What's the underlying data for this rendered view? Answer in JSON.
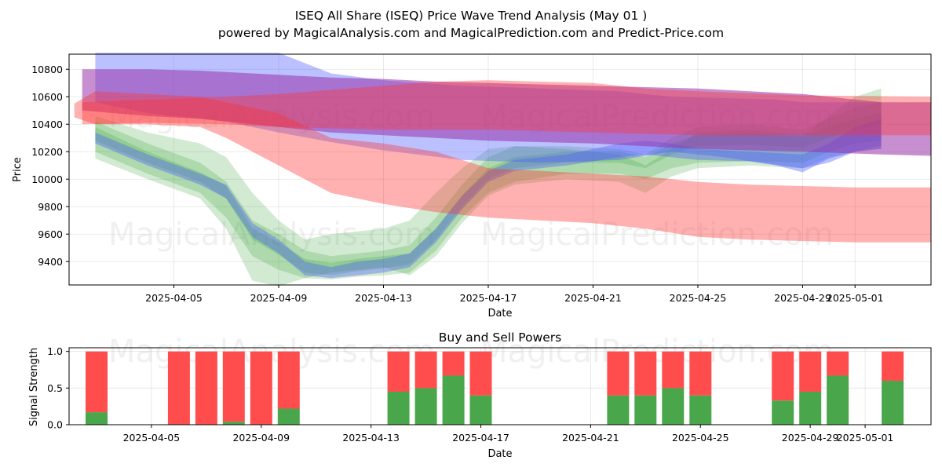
{
  "title_line1": "ISEQ All Share (ISEQ) Price Wave Trend Analysis (May 01 )",
  "title_line2": "powered by MagicalAnalysis.com and MagicalPrediction.com and Predict-Price.com",
  "watermarks": [
    "MagicalAnalysis.com",
    "MagicalPrediction.com"
  ],
  "colors": {
    "green": "#2ca02c",
    "red": "#ff3333",
    "blue": "#4d5cff",
    "purple": "#9933aa",
    "buy": "#4aa64a",
    "sell": "#ff4d4d"
  },
  "chart_data": [
    {
      "type": "area",
      "title": "ISEQ All Share (ISEQ) Price Wave Trend Analysis (May 01 )",
      "xlabel": "Date",
      "ylabel": "Price",
      "xlim": [
        "2025-04-01",
        "2025-05-03.9"
      ],
      "ylim": [
        9230,
        10910
      ],
      "yticks": [
        9400,
        9600,
        9800,
        10000,
        10200,
        10400,
        10600,
        10800
      ],
      "xticks": [
        "2025-04-05",
        "2025-04-09",
        "2025-04-13",
        "2025-04-17",
        "2025-04-21",
        "2025-04-25",
        "2025-04-29",
        "2025-05-01"
      ],
      "grid": true,
      "series": [
        {
          "name": "green band 1",
          "color": "green",
          "x": [
            "2025-04-02",
            "2025-04-04",
            "2025-04-06",
            "2025-04-07",
            "2025-04-08",
            "2025-04-09",
            "2025-04-10",
            "2025-04-11",
            "2025-04-12",
            "2025-04-13",
            "2025-04-14",
            "2025-04-15",
            "2025-04-16",
            "2025-04-17",
            "2025-04-18",
            "2025-04-20",
            "2025-04-22",
            "2025-04-23",
            "2025-04-24",
            "2025-04-25",
            "2025-04-27",
            "2025-04-29",
            "2025-04-30",
            "2025-05-01",
            "2025-05-02"
          ],
          "upper": [
            10380,
            10200,
            10050,
            9950,
            9640,
            9540,
            9420,
            9390,
            9420,
            9440,
            9460,
            9640,
            9880,
            10080,
            10160,
            10200,
            10200,
            10160,
            10260,
            10320,
            10330,
            10310,
            10380,
            10440,
            10480
          ],
          "lower": [
            10280,
            10120,
            9980,
            9860,
            9560,
            9450,
            9320,
            9300,
            9330,
            9350,
            9380,
            9560,
            9800,
            10000,
            10080,
            10120,
            10120,
            10080,
            10180,
            10240,
            10250,
            10230,
            10300,
            10360,
            10400
          ]
        },
        {
          "name": "green band 2",
          "color": "green",
          "x": [
            "2025-04-02",
            "2025-04-04",
            "2025-04-06",
            "2025-04-07",
            "2025-04-08",
            "2025-04-09",
            "2025-04-10",
            "2025-04-11",
            "2025-04-12",
            "2025-04-13",
            "2025-04-14",
            "2025-04-15",
            "2025-04-16",
            "2025-04-17",
            "2025-04-18",
            "2025-04-20",
            "2025-04-22",
            "2025-04-23",
            "2025-04-24",
            "2025-04-25",
            "2025-04-27",
            "2025-04-29",
            "2025-04-30",
            "2025-05-01",
            "2025-05-02"
          ],
          "upper": [
            10420,
            10260,
            10120,
            9980,
            9700,
            9600,
            9480,
            9440,
            9460,
            9480,
            9520,
            9720,
            9960,
            10160,
            10240,
            10240,
            10220,
            10180,
            10300,
            10380,
            10400,
            10360,
            10440,
            10520,
            10560
          ],
          "lower": [
            10200,
            10040,
            9900,
            9720,
            9440,
            9340,
            9280,
            9270,
            9290,
            9300,
            9320,
            9480,
            9720,
            9900,
            9980,
            10040,
            10040,
            10000,
            10080,
            10120,
            10130,
            10120,
            10200,
            10260,
            10280
          ]
        },
        {
          "name": "green band 3",
          "color": "green",
          "x": [
            "2025-04-02",
            "2025-04-04",
            "2025-04-06",
            "2025-04-07",
            "2025-04-08",
            "2025-04-09",
            "2025-04-10",
            "2025-04-11",
            "2025-04-12",
            "2025-04-13",
            "2025-04-14",
            "2025-04-15",
            "2025-04-16",
            "2025-04-17",
            "2025-04-18",
            "2025-04-20",
            "2025-04-22",
            "2025-04-23",
            "2025-04-24",
            "2025-04-25",
            "2025-04-27",
            "2025-04-29",
            "2025-04-30",
            "2025-05-01",
            "2025-05-02"
          ],
          "upper": [
            10460,
            10340,
            10260,
            10160,
            9900,
            9700,
            9560,
            9600,
            9620,
            9640,
            9700,
            9900,
            10080,
            10220,
            10240,
            10220,
            10180,
            10100,
            10220,
            10340,
            10360,
            10320,
            10460,
            10600,
            10660
          ],
          "lower": [
            10150,
            10000,
            9860,
            9640,
            9260,
            9220,
            9280,
            9320,
            9340,
            9360,
            9300,
            9440,
            9680,
            9880,
            9960,
            10000,
            9980,
            9900,
            10020,
            10080,
            10100,
            10080,
            10160,
            10200,
            10220
          ]
        },
        {
          "name": "blue band 1",
          "color": "blue",
          "x": [
            "2025-04-02",
            "2025-04-04",
            "2025-04-06",
            "2025-04-07",
            "2025-04-08",
            "2025-04-09",
            "2025-04-10",
            "2025-04-11",
            "2025-04-12",
            "2025-04-13",
            "2025-04-14",
            "2025-04-15",
            "2025-04-16",
            "2025-04-17",
            "2025-04-18",
            "2025-04-20",
            "2025-04-22",
            "2025-04-23",
            "2025-04-24",
            "2025-04-25",
            "2025-04-27",
            "2025-04-29",
            "2025-04-30",
            "2025-05-01",
            "2025-05-02"
          ],
          "upper": [
            10340,
            10180,
            10040,
            9960,
            9680,
            9560,
            9400,
            9360,
            9400,
            9420,
            9460,
            9640,
            9880,
            10060,
            10140,
            10180,
            10260,
            10280,
            10260,
            10220,
            10200,
            10180,
            10260,
            10380,
            10440
          ],
          "lower": [
            10260,
            10100,
            9960,
            9860,
            9580,
            9460,
            9300,
            9280,
            9300,
            9320,
            9360,
            9540,
            9780,
            9980,
            10060,
            10100,
            10160,
            10180,
            10160,
            10140,
            10130,
            10080,
            10120,
            10200,
            10240
          ]
        },
        {
          "name": "blue band 2",
          "color": "blue",
          "x": [
            "2025-04-02",
            "2025-04-04",
            "2025-04-07",
            "2025-04-09",
            "2025-04-11",
            "2025-04-13",
            "2025-04-16",
            "2025-04-19",
            "2025-04-22",
            "2025-04-24",
            "2025-04-26",
            "2025-04-28",
            "2025-04-29",
            "2025-04-30",
            "2025-05-01",
            "2025-05-02"
          ],
          "upper": [
            10920,
            10920,
            10920,
            10920,
            10770,
            10720,
            10680,
            10660,
            10640,
            10600,
            10590,
            10580,
            10560,
            10560,
            10560,
            10560
          ],
          "lower": [
            10560,
            10480,
            10420,
            10340,
            10270,
            10210,
            10140,
            10120,
            10140,
            10200,
            10160,
            10100,
            10050,
            10150,
            10200,
            10220
          ]
        },
        {
          "name": "purple band",
          "color": "purple",
          "x": [
            "2025-04-01.5",
            "2025-04-04",
            "2025-04-06",
            "2025-04-07",
            "2025-04-09",
            "2025-04-11",
            "2025-04-13",
            "2025-04-15",
            "2025-04-17",
            "2025-04-21",
            "2025-04-23",
            "2025-04-25",
            "2025-04-29",
            "2025-05-02",
            "2025-05-03.9"
          ],
          "upper": [
            10800,
            10800,
            10790,
            10780,
            10760,
            10740,
            10730,
            10710,
            10700,
            10680,
            10670,
            10660,
            10620,
            10560,
            10560
          ],
          "lower": [
            10500,
            10460,
            10440,
            10420,
            10380,
            10340,
            10320,
            10300,
            10280,
            10260,
            10240,
            10220,
            10200,
            10180,
            10170
          ]
        },
        {
          "name": "red band 1",
          "color": "red",
          "x": [
            "2025-04-01.2",
            "2025-04-02",
            "2025-04-04",
            "2025-04-06",
            "2025-04-07",
            "2025-04-09",
            "2025-04-11",
            "2025-04-13",
            "2025-04-15",
            "2025-04-17",
            "2025-04-19",
            "2025-04-21",
            "2025-04-23",
            "2025-04-25",
            "2025-04-27",
            "2025-04-29",
            "2025-05-01",
            "2025-05-03.9"
          ],
          "upper": [
            10550,
            10640,
            10620,
            10600,
            10560,
            10480,
            10300,
            10260,
            10200,
            10080,
            10060,
            10040,
            10020,
            9980,
            9960,
            9950,
            9940,
            9940
          ],
          "lower": [
            10450,
            10400,
            10400,
            10380,
            10300,
            10100,
            9900,
            9820,
            9760,
            9720,
            9700,
            9680,
            9640,
            9580,
            9560,
            9550,
            9540,
            9540
          ]
        },
        {
          "name": "red band 2",
          "color": "red",
          "x": [
            "2025-04-01.5",
            "2025-04-04",
            "2025-04-07",
            "2025-04-09",
            "2025-04-11",
            "2025-04-13",
            "2025-04-15",
            "2025-04-17",
            "2025-04-21",
            "2025-04-23",
            "2025-04-25",
            "2025-04-29",
            "2025-05-03.9"
          ],
          "upper": [
            10560,
            10580,
            10600,
            10620,
            10650,
            10680,
            10710,
            10720,
            10700,
            10660,
            10640,
            10610,
            10600
          ],
          "lower": [
            10400,
            10410,
            10400,
            10380,
            10370,
            10360,
            10360,
            10360,
            10340,
            10330,
            10320,
            10320,
            10320
          ]
        }
      ]
    },
    {
      "type": "bar",
      "title": "Buy and Sell Powers",
      "xlabel": "Date",
      "ylabel": "Signal Strength",
      "ylim": [
        0,
        1.05
      ],
      "yticks": [
        "0.0",
        "0.5",
        "1.0"
      ],
      "xlim": [
        "2025-04-02",
        "2025-05-03.4"
      ],
      "xticks": [
        "2025-04-05",
        "2025-04-09",
        "2025-04-13",
        "2025-04-17",
        "2025-04-21",
        "2025-04-25",
        "2025-04-29",
        "2025-05-01"
      ],
      "categories": [
        "2025-04-03",
        "2025-04-06",
        "2025-04-07",
        "2025-04-08",
        "2025-04-09",
        "2025-04-10",
        "2025-04-14",
        "2025-04-15",
        "2025-04-16",
        "2025-04-17",
        "2025-04-22",
        "2025-04-23",
        "2025-04-24",
        "2025-04-25",
        "2025-04-28",
        "2025-04-29",
        "2025-04-30",
        "2025-05-02"
      ],
      "series": [
        {
          "name": "Buy",
          "color": "buy",
          "values": [
            0.17,
            0,
            0,
            0.04,
            0,
            0.22,
            0.45,
            0.5,
            0.67,
            0.4,
            0.4,
            0.4,
            0.5,
            0.4,
            0.33,
            0.45,
            0.67,
            0.6
          ]
        },
        {
          "name": "Sell",
          "color": "sell",
          "values": [
            0.83,
            1,
            1,
            0.96,
            1,
            0.78,
            0.55,
            0.5,
            0.33,
            0.6,
            0.6,
            0.6,
            0.5,
            0.6,
            0.67,
            0.55,
            0.33,
            0.4
          ]
        }
      ]
    }
  ]
}
